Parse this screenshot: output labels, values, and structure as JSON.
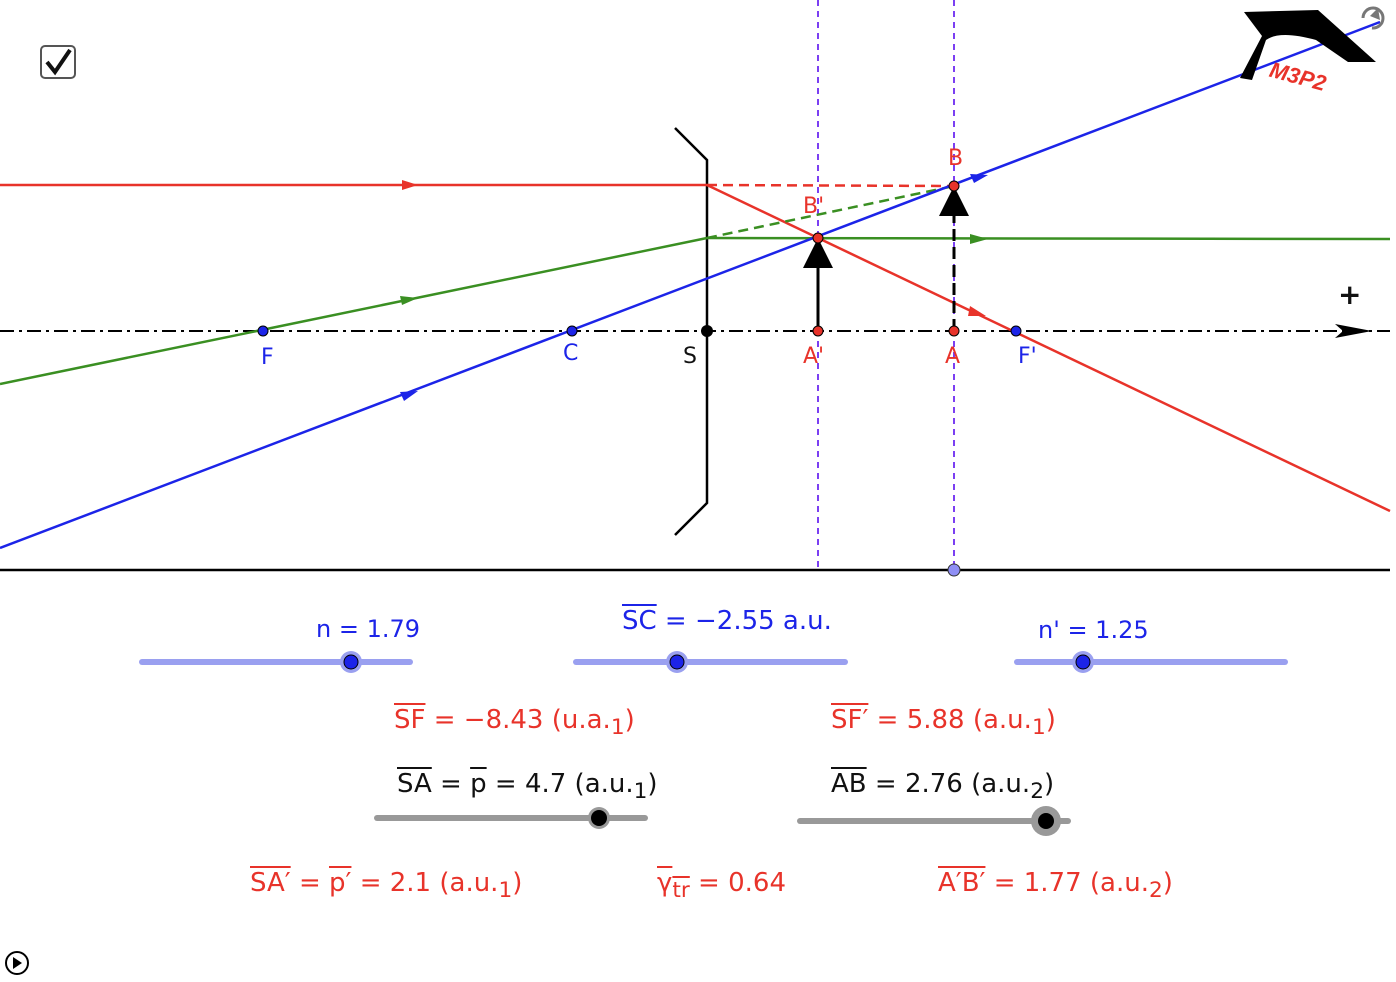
{
  "checkbox": {
    "checked": true
  },
  "logo": {
    "text": "M3P2"
  },
  "axis": {
    "plus_label": "+"
  },
  "points": {
    "F": "F",
    "C": "C",
    "S": "S",
    "A_prime": "A'",
    "A": "A",
    "F_prime": "F'",
    "B": "B",
    "B_prime": "B'"
  },
  "sliders": {
    "n": {
      "label": "n = 1.79",
      "value": 1.79
    },
    "SC": {
      "lhs": "SC",
      "rhs": " = −2.55 a.u.",
      "value": -2.55
    },
    "n_prime": {
      "label": "n' = 1.25",
      "value": 1.25
    },
    "SA": {
      "lhs": "SA",
      "mid": " = ",
      "p": "p",
      "rhs": " = 4.7 (a.u.",
      "sub": "1",
      "close": ")",
      "value": 4.7
    },
    "AB": {
      "lhs": "AB",
      "rhs": " =  2.76 (a.u.",
      "sub": "2",
      "close": ")",
      "value": 2.76
    }
  },
  "results": {
    "SF": {
      "lhs": "SF",
      "rhs": " = −8.43 (u.a.",
      "sub": "1",
      "close": ")"
    },
    "SF_prime": {
      "lhs": "SF′",
      "rhs": " = 5.88 (a.u.",
      "sub": "1",
      "close": ")"
    },
    "SA_prime": {
      "lhs": "SA′",
      "mid": " = ",
      "p": "p′",
      "rhs": " = 2.1 (a.u.",
      "sub": "1",
      "close": ")"
    },
    "gamma": {
      "lhs": "γ",
      "lsub": "tr",
      "rhs": " = 0.64"
    },
    "AB_prime": {
      "lhs": "A′B′",
      "rhs": " = 1.77 (a.u.",
      "sub": "2",
      "close": ")"
    }
  },
  "colors": {
    "red": "#e8332a",
    "blue": "#1c24e8",
    "green": "#3a8f22",
    "purple": "#7b3ff2",
    "slider_blue": "#9aa0f0",
    "slider_gray": "#999999"
  }
}
